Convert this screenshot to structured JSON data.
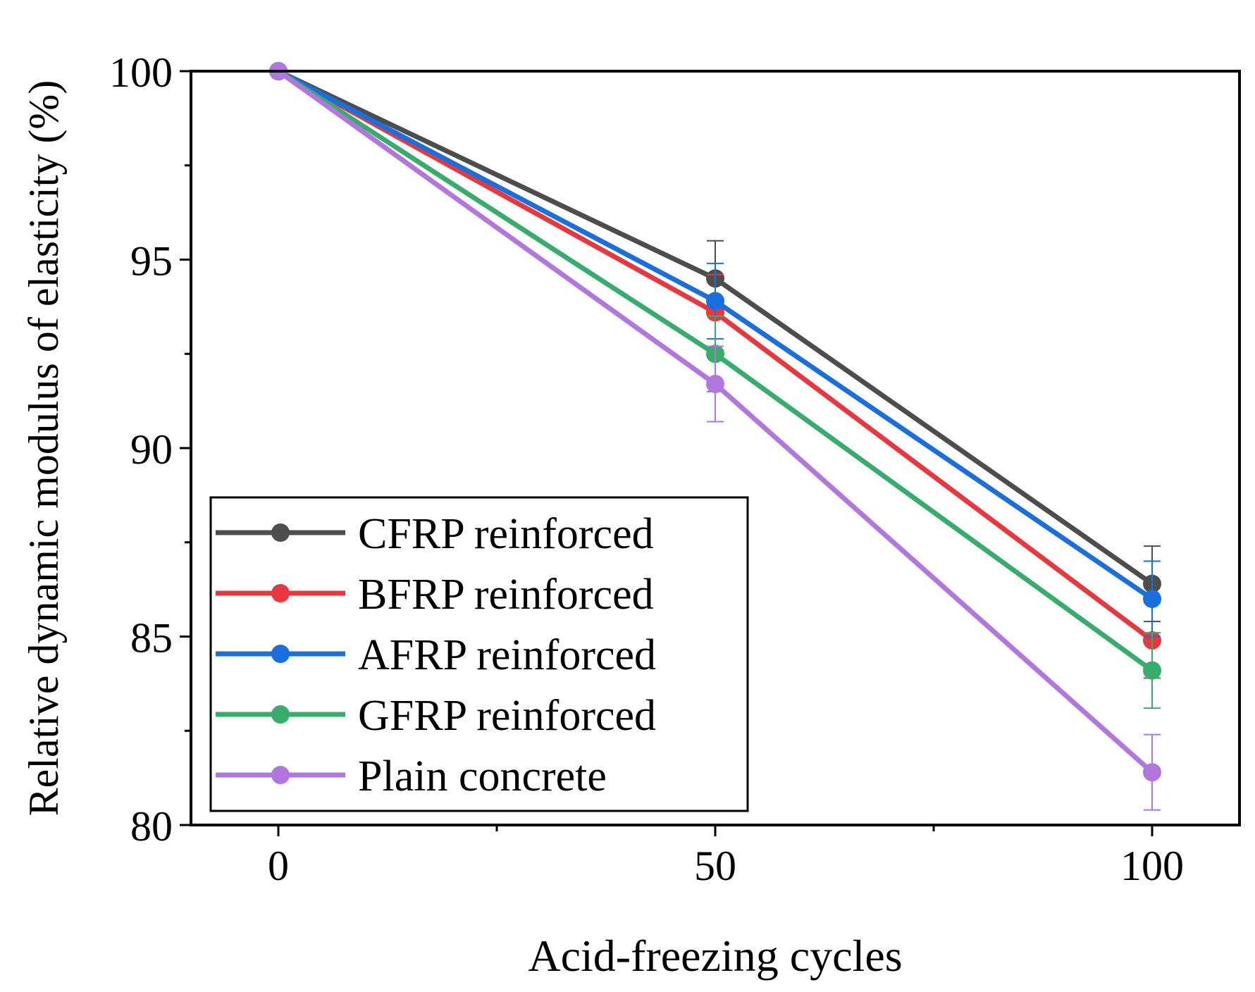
{
  "chart_data": {
    "type": "line",
    "title": "",
    "xlabel": "Acid-freezing cycles",
    "ylabel": "Relative dynamic modulus of elasticity (%)",
    "xlim": [
      -10,
      110
    ],
    "ylim": [
      80,
      100
    ],
    "x_ticks": [
      0,
      50,
      100
    ],
    "x_minor_ticks": [
      25,
      75
    ],
    "y_ticks": [
      80,
      85,
      90,
      95,
      100
    ],
    "y_minor_ticks": [
      82.5,
      87.5,
      92.5,
      97.5
    ],
    "x": [
      0,
      50,
      100
    ],
    "grid": false,
    "legend_position": "bottom-left",
    "series": [
      {
        "name": "CFRP reinforced",
        "color": "#4d4d4d",
        "values": [
          100,
          94.5,
          86.4
        ],
        "errors": [
          0,
          1.0,
          1.0
        ]
      },
      {
        "name": "BFRP reinforced",
        "color": "#e8383d",
        "values": [
          100,
          93.6,
          84.9
        ],
        "errors": [
          0,
          1.0,
          1.0
        ]
      },
      {
        "name": "AFRP reinforced",
        "color": "#1a6fdf",
        "values": [
          100,
          93.9,
          86.0
        ],
        "errors": [
          0,
          1.0,
          1.0
        ]
      },
      {
        "name": "GFRP reinforced",
        "color": "#37ad6b",
        "values": [
          100,
          92.5,
          84.1
        ],
        "errors": [
          0,
          1.0,
          1.0
        ]
      },
      {
        "name": "Plain concrete",
        "color": "#b177de",
        "values": [
          100,
          91.7,
          81.4
        ],
        "errors": [
          0,
          1.0,
          1.0
        ]
      }
    ]
  }
}
